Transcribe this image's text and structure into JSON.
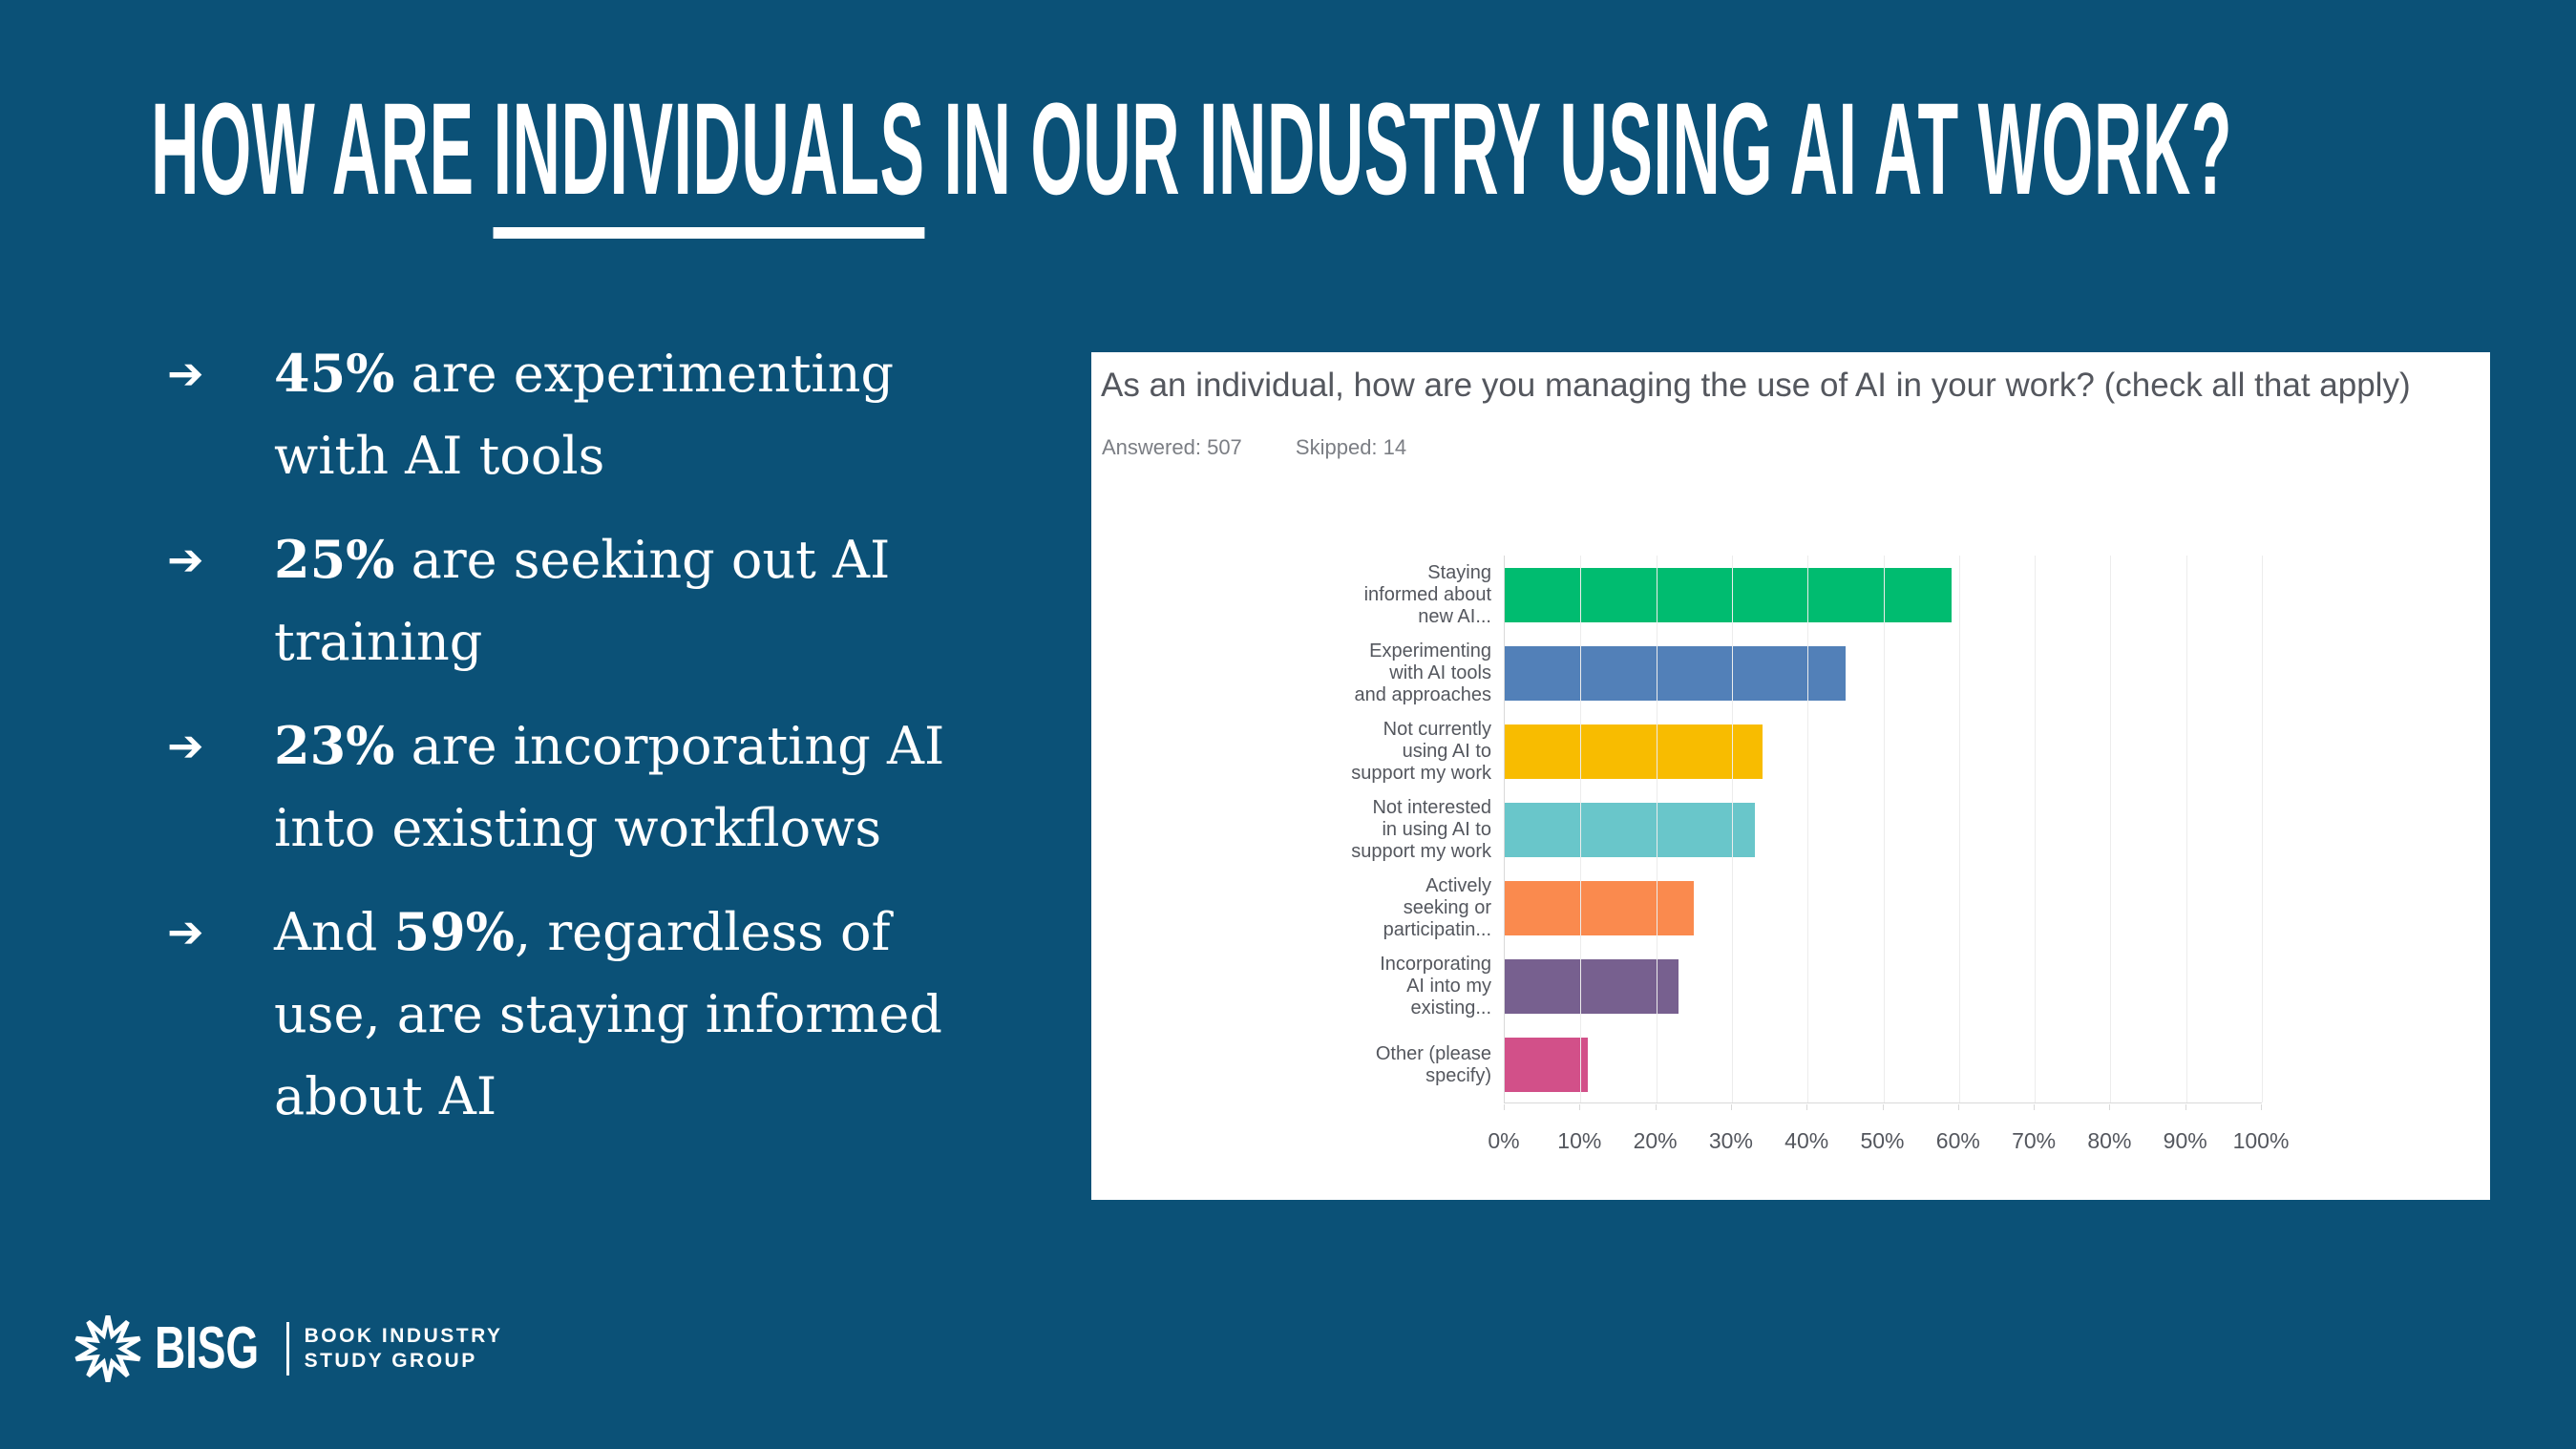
{
  "slide": {
    "title": {
      "pre": "HOW ARE ",
      "underlined": "INDIVIDUALS",
      "post": " IN OUR INDUSTRY USING AI AT WORK?"
    },
    "bullet_glyph": "➔",
    "bullets": [
      "45% are experimenting\nwith AI tools",
      "25% are seeking out AI\ntraining",
      "23% are incorporating AI\ninto existing workflows",
      "And 59%, regardless of\nuse, are staying informed\nabout AI"
    ],
    "logo": {
      "abbr": "BISG",
      "tagline_line1": "BOOK INDUSTRY",
      "tagline_line2": "STUDY GROUP"
    }
  },
  "survey": {
    "question": "As an individual, how are you managing the use of AI in your work? (check all that apply)",
    "answered_label": "Answered:",
    "answered_count": "507",
    "skipped_label": "Skipped:",
    "skipped_count": "14"
  },
  "chart_data": {
    "type": "bar",
    "orientation": "horizontal",
    "title": "As an individual, how are you managing the use of AI in your work? (check all that apply)",
    "answered": 507,
    "skipped": 14,
    "categories": [
      "Staying\ninformed about\nnew AI...",
      "Experimenting\nwith AI tools\nand approaches",
      "Not currently\nusing AI to\nsupport my work",
      "Not interested\nin using AI to\nsupport my work",
      "Actively\nseeking or\nparticipatin...",
      "Incorporating\nAI into my\nexisting...",
      "Other (please\nspecify)"
    ],
    "values": [
      59,
      45,
      34,
      33,
      25,
      23,
      11
    ],
    "value_unit": "%",
    "colors": [
      "#00BC70",
      "#5280B8",
      "#F8BC00",
      "#69C6CA",
      "#FA8A4E",
      "#77608F",
      "#D25089"
    ],
    "x_ticks": [
      "0%",
      "10%",
      "20%",
      "30%",
      "40%",
      "50%",
      "60%",
      "70%",
      "80%",
      "90%",
      "100%"
    ],
    "xlim": [
      0,
      100
    ],
    "grid": "vertical",
    "legend": false
  }
}
